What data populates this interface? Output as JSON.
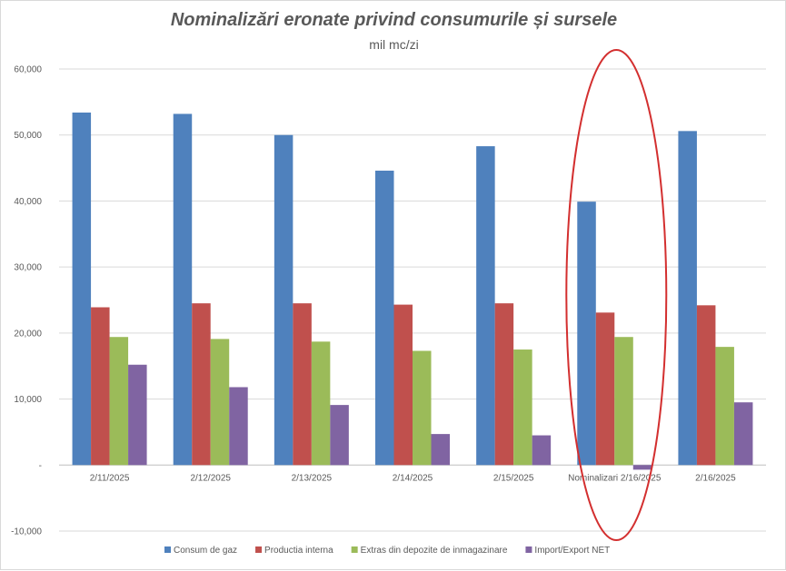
{
  "chart_data": {
    "type": "bar",
    "title": "Nominalizări eronate privind consumurile și sursele",
    "subtitle": "mil mc/zi",
    "categories": [
      "2/11/2025",
      "2/12/2025",
      "2/13/2025",
      "2/14/2025",
      "2/15/2025",
      "Nominalizari 2/16/2025",
      "2/16/2025"
    ],
    "series": [
      {
        "name": "Consum de gaz",
        "color": "#4f81bd",
        "values": [
          53400,
          53200,
          50000,
          44600,
          48300,
          39900,
          50600
        ]
      },
      {
        "name": "Productia interna",
        "color": "#c0504d",
        "values": [
          23900,
          24500,
          24500,
          24300,
          24500,
          23100,
          24200
        ]
      },
      {
        "name": "Extras din depozite de inmagazinare",
        "color": "#9bbb59",
        "values": [
          19400,
          19100,
          18700,
          17300,
          17500,
          19400,
          17900
        ]
      },
      {
        "name": "Import/Export NET",
        "color": "#8064a2",
        "values": [
          15200,
          11800,
          9100,
          4700,
          4500,
          -700,
          9500
        ]
      }
    ],
    "ylim": [
      -10000,
      60000
    ],
    "yticks": [
      60000,
      50000,
      40000,
      30000,
      20000,
      10000,
      0,
      -10000
    ],
    "ytick_labels": [
      "60,000",
      "50,000",
      "40,000",
      "30,000",
      "20,000",
      "10,000",
      "-",
      "-10,000"
    ],
    "grid": true,
    "legend": "bottom",
    "annotation": {
      "type": "ellipse",
      "category_index": 5,
      "color": "#d32f2f"
    }
  }
}
